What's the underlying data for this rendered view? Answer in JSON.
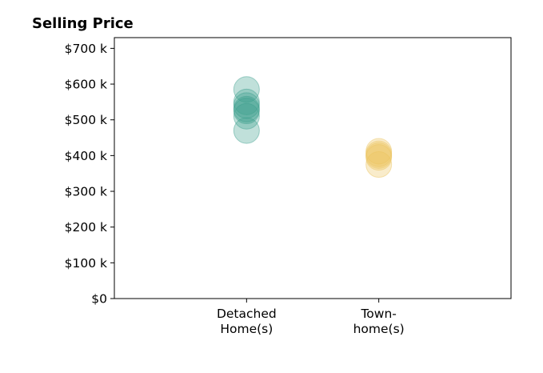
{
  "chart_data": {
    "type": "scatter",
    "title": "Selling Price",
    "xlabel": "",
    "ylabel": "",
    "categories": [
      {
        "lines": [
          "Detached",
          "Home(s)"
        ]
      },
      {
        "lines": [
          "Town-",
          "home(s)"
        ]
      }
    ],
    "category_positions": [
      1,
      2
    ],
    "xlim": [
      0,
      3
    ],
    "ylim": [
      0,
      730000
    ],
    "y_ticks": [
      0,
      100000,
      200000,
      300000,
      400000,
      500000,
      600000,
      700000
    ],
    "y_tick_labels": [
      "$0",
      "$100 k",
      "$200 k",
      "$300 k",
      "$400 k",
      "$500 k",
      "$600 k",
      "$700 k"
    ],
    "grid": false,
    "series": [
      {
        "category_index": 0,
        "color": "#3a9e8c",
        "values": [
          585000,
          550000,
          540000,
          530000,
          525000,
          510000,
          470000
        ]
      },
      {
        "category_index": 1,
        "color": "#ecc45e",
        "values": [
          412000,
          405000,
          400000,
          395000,
          375000
        ]
      }
    ]
  }
}
